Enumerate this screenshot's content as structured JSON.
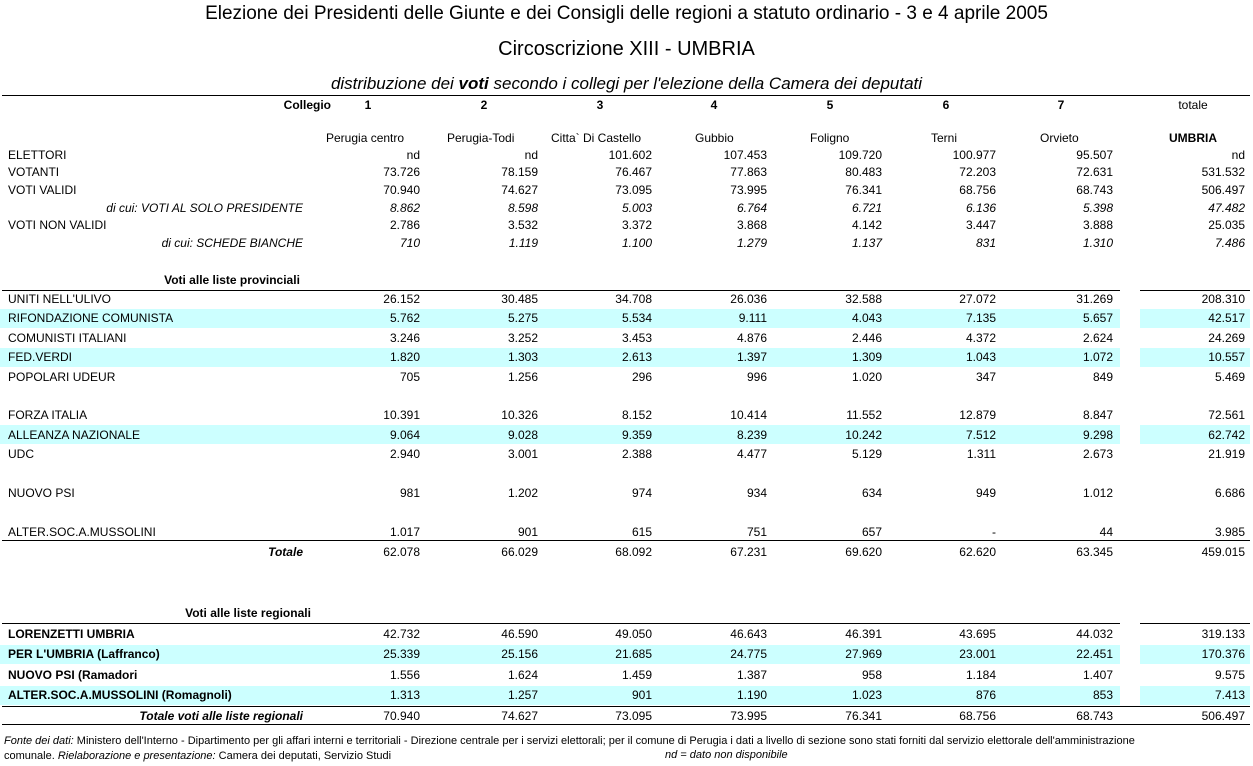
{
  "header": {
    "title": "Elezione dei Presidenti delle Giunte e dei Consigli delle regioni a statuto ordinario - 3 e 4 aprile 2005",
    "subtitle": "Circoscrizione XIII - UMBRIA",
    "heading": [
      "distribuzione dei",
      "voti",
      "secondo i collegi per l'elezione della Camera dei deputati"
    ]
  },
  "table": {
    "collegio": "Collegio",
    "columns": [
      {
        "number": "1",
        "name": "Perugia centro"
      },
      {
        "number": "2",
        "name": "Perugia-Todi"
      },
      {
        "number": "3",
        "name": "Citta` Di Castello"
      },
      {
        "number": "4",
        "name": "Gubbio"
      },
      {
        "number": "5",
        "name": "Foligno"
      },
      {
        "number": "6",
        "name": "Terni"
      },
      {
        "number": "7",
        "name": "Orvieto"
      }
    ],
    "total": {
      "label": "totale",
      "name": "UMBRIA"
    },
    "general": [
      {
        "label": "ELETTORI",
        "values": [
          "nd",
          "nd",
          "101.602",
          "107.453",
          "109.720",
          "100.977",
          "95.507"
        ],
        "total": "nd"
      },
      {
        "label": "VOTANTI",
        "values": [
          "73.726",
          "78.159",
          "76.467",
          "77.863",
          "80.483",
          "72.203",
          "72.631"
        ],
        "total": "531.532"
      },
      {
        "label": "VOTI VALIDI",
        "values": [
          "70.940",
          "74.627",
          "73.095",
          "73.995",
          "76.341",
          "68.756",
          "68.743"
        ],
        "total": "506.497"
      },
      {
        "label": "di cui: VOTI AL SOLO PRESIDENTE",
        "italic": true,
        "values": [
          "8.862",
          "8.598",
          "5.003",
          "6.764",
          "6.721",
          "6.136",
          "5.398"
        ],
        "total": "47.482"
      },
      {
        "label": "VOTI NON VALIDI",
        "values": [
          "2.786",
          "3.532",
          "3.372",
          "3.868",
          "4.142",
          "3.447",
          "3.888"
        ],
        "total": "25.035"
      },
      {
        "label": "di cui:  SCHEDE BIANCHE",
        "italic": true,
        "values": [
          "710",
          "1.119",
          "1.100",
          "1.279",
          "1.137",
          "831",
          "1.310"
        ],
        "total": "7.486"
      }
    ],
    "provincial": {
      "title": "Voti alle liste provinciali",
      "groups": [
        [
          {
            "label": "UNITI NELL'ULIVO",
            "values": [
              "26.152",
              "30.485",
              "34.708",
              "26.036",
              "32.588",
              "27.072",
              "31.269"
            ],
            "total": "208.310"
          },
          {
            "label": "RIFONDAZIONE COMUNISTA",
            "values": [
              "5.762",
              "5.275",
              "5.534",
              "9.111",
              "4.043",
              "7.135",
              "5.657"
            ],
            "total": "42.517"
          },
          {
            "label": "COMUNISTI ITALIANI",
            "values": [
              "3.246",
              "3.252",
              "3.453",
              "4.876",
              "2.446",
              "4.372",
              "2.624"
            ],
            "total": "24.269"
          },
          {
            "label": "FED.VERDI",
            "values": [
              "1.820",
              "1.303",
              "2.613",
              "1.397",
              "1.309",
              "1.043",
              "1.072"
            ],
            "total": "10.557"
          },
          {
            "label": "POPOLARI UDEUR",
            "values": [
              "705",
              "1.256",
              "296",
              "996",
              "1.020",
              "347",
              "849"
            ],
            "total": "5.469"
          }
        ],
        [
          {
            "label": "FORZA ITALIA",
            "values": [
              "10.391",
              "10.326",
              "8.152",
              "10.414",
              "11.552",
              "12.879",
              "8.847"
            ],
            "total": "72.561"
          },
          {
            "label": "ALLEANZA NAZIONALE",
            "values": [
              "9.064",
              "9.028",
              "9.359",
              "8.239",
              "10.242",
              "7.512",
              "9.298"
            ],
            "total": "62.742"
          },
          {
            "label": "UDC",
            "values": [
              "2.940",
              "3.001",
              "2.388",
              "4.477",
              "5.129",
              "1.311",
              "2.673"
            ],
            "total": "21.919"
          }
        ],
        [
          {
            "label": "NUOVO PSI",
            "values": [
              "981",
              "1.202",
              "974",
              "934",
              "634",
              "949",
              "1.012"
            ],
            "total": "6.686"
          }
        ],
        [
          {
            "label": "ALTER.SOC.A.MUSSOLINI",
            "values": [
              "1.017",
              "901",
              "615",
              "751",
              "657",
              "-",
              "44"
            ],
            "total": "3.985"
          }
        ]
      ],
      "total": {
        "label": "Totale",
        "values": [
          "62.078",
          "66.029",
          "68.092",
          "67.231",
          "69.620",
          "62.620",
          "63.345"
        ],
        "total": "459.015"
      }
    },
    "regional": {
      "title": "Voti alle liste regionali",
      "rows": [
        {
          "label": "LORENZETTI UMBRIA",
          "values": [
            "42.732",
            "46.590",
            "49.050",
            "46.643",
            "46.391",
            "43.695",
            "44.032"
          ],
          "total": "319.133"
        },
        {
          "label": "PER L'UMBRIA (Laffranco)",
          "values": [
            "25.339",
            "25.156",
            "21.685",
            "24.775",
            "27.969",
            "23.001",
            "22.451"
          ],
          "total": "170.376"
        },
        {
          "label": "NUOVO PSI (Ramadori",
          "values": [
            "1.556",
            "1.624",
            "1.459",
            "1.387",
            "958",
            "1.184",
            "1.407"
          ],
          "total": "9.575"
        },
        {
          "label": "ALTER.SOC.A.MUSSOLINI (Romagnoli)",
          "values": [
            "1.313",
            "1.257",
            "901",
            "1.190",
            "1.023",
            "876",
            "853"
          ],
          "total": "7.413"
        }
      ],
      "total": {
        "label": "Totale voti alle liste regionali",
        "values": [
          "70.940",
          "74.627",
          "73.095",
          "73.995",
          "76.341",
          "68.756",
          "68.743"
        ],
        "total": "506.497"
      }
    }
  },
  "footer": {
    "source_label": "Fonte dei dati:",
    "source": "Ministero dell'Interno - Dipartimento per gli affari interni e territoriali - Direzione centrale per i servizi elettorali; per il comune di Perugia i dati a livello di sezione sono stati forniti dal servizio elettorale dell'amministrazione comunale.",
    "elaboration_label": "Rielaborazione e presentazione:",
    "elaboration": "Camera dei deputati, Servizio Studi",
    "note": "nd = dato non disponibile"
  }
}
